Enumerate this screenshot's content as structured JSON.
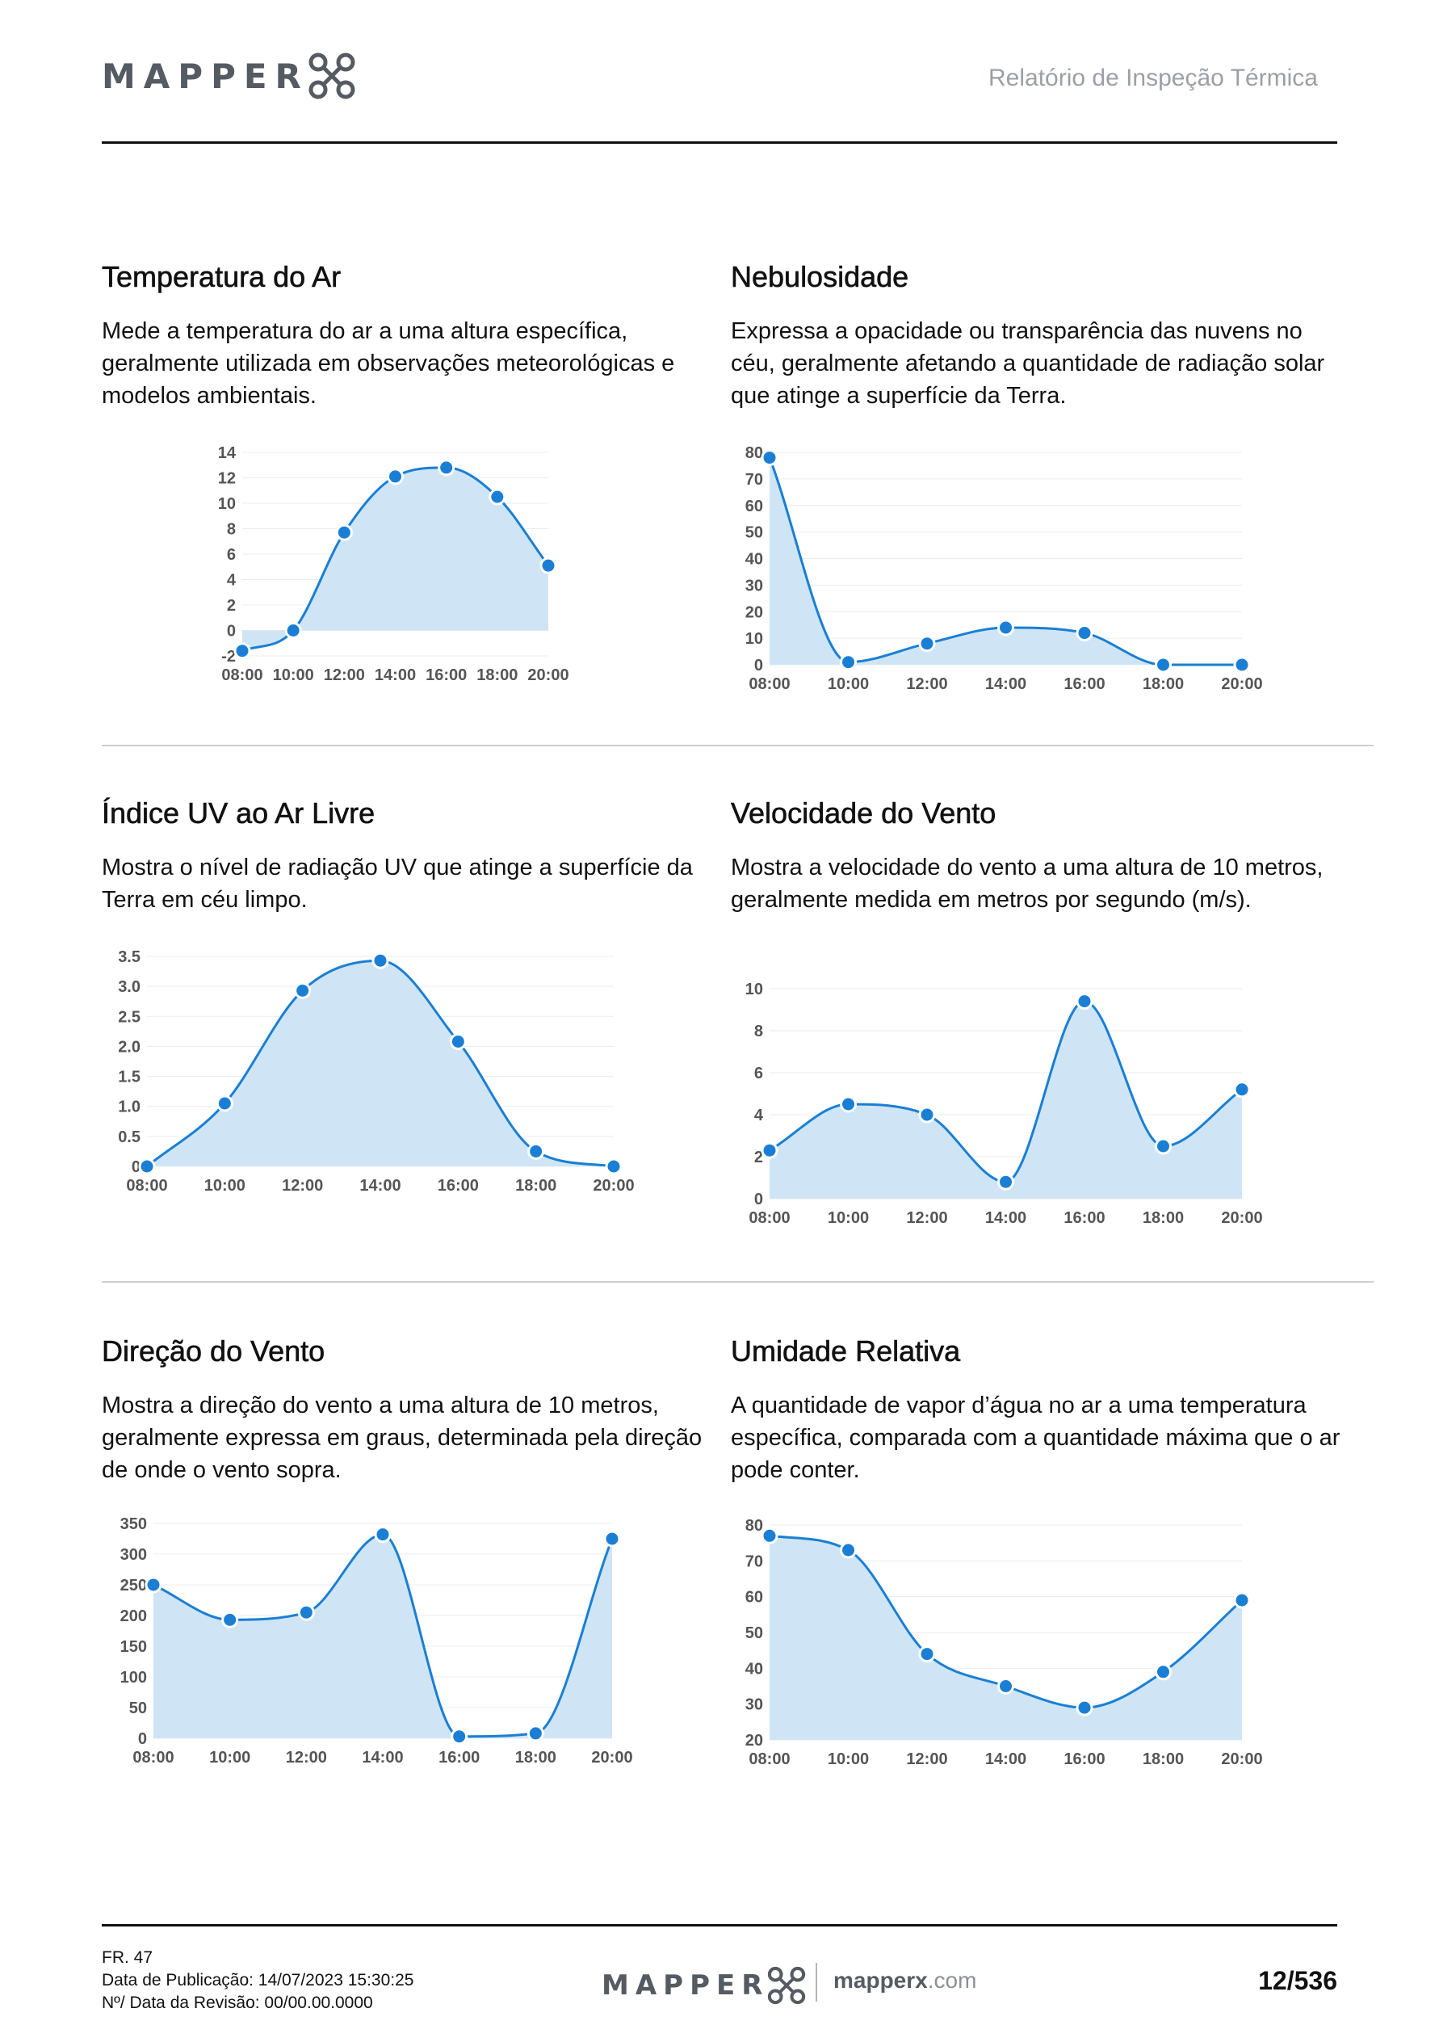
{
  "header": {
    "logo_text": "MAPPER",
    "document_title": "Relatório de Inspeção Térmica"
  },
  "sections": [
    {
      "title": "Temperatura do Ar",
      "description": "Mede a temperatura do ar a uma altura específica, geralmente utilizada em observações meteorológicas e modelos ambientais."
    },
    {
      "title": "Nebulosidade",
      "description": "Expressa a opacidade ou transparência das nuvens no céu, geralmente afetando a quantidade de radiação solar que atinge a superfície da Terra."
    },
    {
      "title": "Índice UV ao Ar Livre",
      "description": "Mostra o nível de radiação UV que atinge a superfície da Terra em céu limpo."
    },
    {
      "title": "Velocidade do Vento",
      "description": "Mostra a velocidade do vento a uma altura de 10 metros, geralmente medida em metros por segundo (m/s)."
    },
    {
      "title": "Direção do Vento",
      "description": "Mostra a direção do vento a uma altura de 10 metros, geralmente expressa em graus, determinada pela direção de onde o vento sopra."
    },
    {
      "title": "Umidade Relativa",
      "description": "A quantidade de vapor d’água no ar a uma temperatura específica, comparada com a quantidade máxima que o ar pode conter."
    }
  ],
  "chart_data": [
    {
      "type": "area",
      "title": "Temperatura do Ar",
      "x": [
        "08:00",
        "10:00",
        "12:00",
        "14:00",
        "16:00",
        "18:00",
        "20:00"
      ],
      "values": [
        -1.6,
        0,
        7.7,
        12.1,
        12.8,
        10.5,
        5.1
      ],
      "ylim": [
        -2,
        14
      ],
      "yticks": [
        "-2",
        "0",
        "2",
        "4",
        "6",
        "8",
        "10",
        "12",
        "14"
      ],
      "ytick_values": [
        -2,
        0,
        2,
        4,
        6,
        8,
        10,
        12,
        14
      ]
    },
    {
      "type": "area",
      "title": "Nebulosidade",
      "x": [
        "08:00",
        "10:00",
        "12:00",
        "14:00",
        "16:00",
        "18:00",
        "20:00"
      ],
      "values": [
        78,
        1,
        8,
        14,
        12,
        0,
        0
      ],
      "ylim": [
        0,
        80
      ],
      "yticks": [
        "0",
        "10",
        "20",
        "30",
        "40",
        "50",
        "60",
        "70",
        "80"
      ],
      "ytick_values": [
        0,
        10,
        20,
        30,
        40,
        50,
        60,
        70,
        80
      ]
    },
    {
      "type": "area",
      "title": "Índice UV ao Ar Livre",
      "x": [
        "08:00",
        "10:00",
        "12:00",
        "14:00",
        "16:00",
        "18:00",
        "20:00"
      ],
      "values": [
        0,
        1.05,
        2.93,
        3.43,
        2.08,
        0.25,
        0
      ],
      "ylim": [
        0,
        3.5
      ],
      "yticks": [
        "0",
        "0.5",
        "1.0",
        "1.5",
        "2.0",
        "2.5",
        "3.0",
        "3.5"
      ],
      "ytick_values": [
        0,
        0.5,
        1.0,
        1.5,
        2.0,
        2.5,
        3.0,
        3.5
      ]
    },
    {
      "type": "area",
      "title": "Velocidade do Vento",
      "x": [
        "08:00",
        "10:00",
        "12:00",
        "14:00",
        "16:00",
        "18:00",
        "20:00"
      ],
      "values": [
        2.3,
        4.5,
        4.0,
        0.8,
        9.4,
        2.5,
        5.2
      ],
      "ylim": [
        0,
        10
      ],
      "yticks": [
        "0",
        "2",
        "4",
        "6",
        "8",
        "10"
      ],
      "ytick_values": [
        0,
        2,
        4,
        6,
        8,
        10
      ]
    },
    {
      "type": "area",
      "title": "Direção do Vento",
      "x": [
        "08:00",
        "10:00",
        "12:00",
        "14:00",
        "16:00",
        "18:00",
        "20:00"
      ],
      "values": [
        250,
        193,
        205,
        332,
        3,
        8,
        325
      ],
      "ylim": [
        0,
        350
      ],
      "yticks": [
        "0",
        "50",
        "100",
        "150",
        "200",
        "250",
        "300",
        "350"
      ],
      "ytick_values": [
        0,
        50,
        100,
        150,
        200,
        250,
        300,
        350
      ]
    },
    {
      "type": "area",
      "title": "Umidade Relativa",
      "x": [
        "08:00",
        "10:00",
        "12:00",
        "14:00",
        "16:00",
        "18:00",
        "20:00"
      ],
      "values": [
        77,
        73,
        44,
        35,
        29,
        39,
        59
      ],
      "ylim": [
        20,
        80
      ],
      "yticks": [
        "20",
        "30",
        "40",
        "50",
        "60",
        "70",
        "80"
      ],
      "ytick_values": [
        20,
        30,
        40,
        50,
        60,
        70,
        80
      ]
    }
  ],
  "colors": {
    "line": "#1a7fd4",
    "fill": "#cfe5f5",
    "grid": "#ececec",
    "axis_text": "#555555"
  },
  "footer": {
    "form_code": "FR. 47",
    "publication_date": "Data de Publicação: 14/07/2023 15:30:25",
    "revision": "Nº/ Data da Revisão: 00/00.00.0000",
    "logo_text": "MAPPER",
    "site_bold": "mapperx",
    "site_suffix": ".com",
    "page_number": "12/536"
  }
}
